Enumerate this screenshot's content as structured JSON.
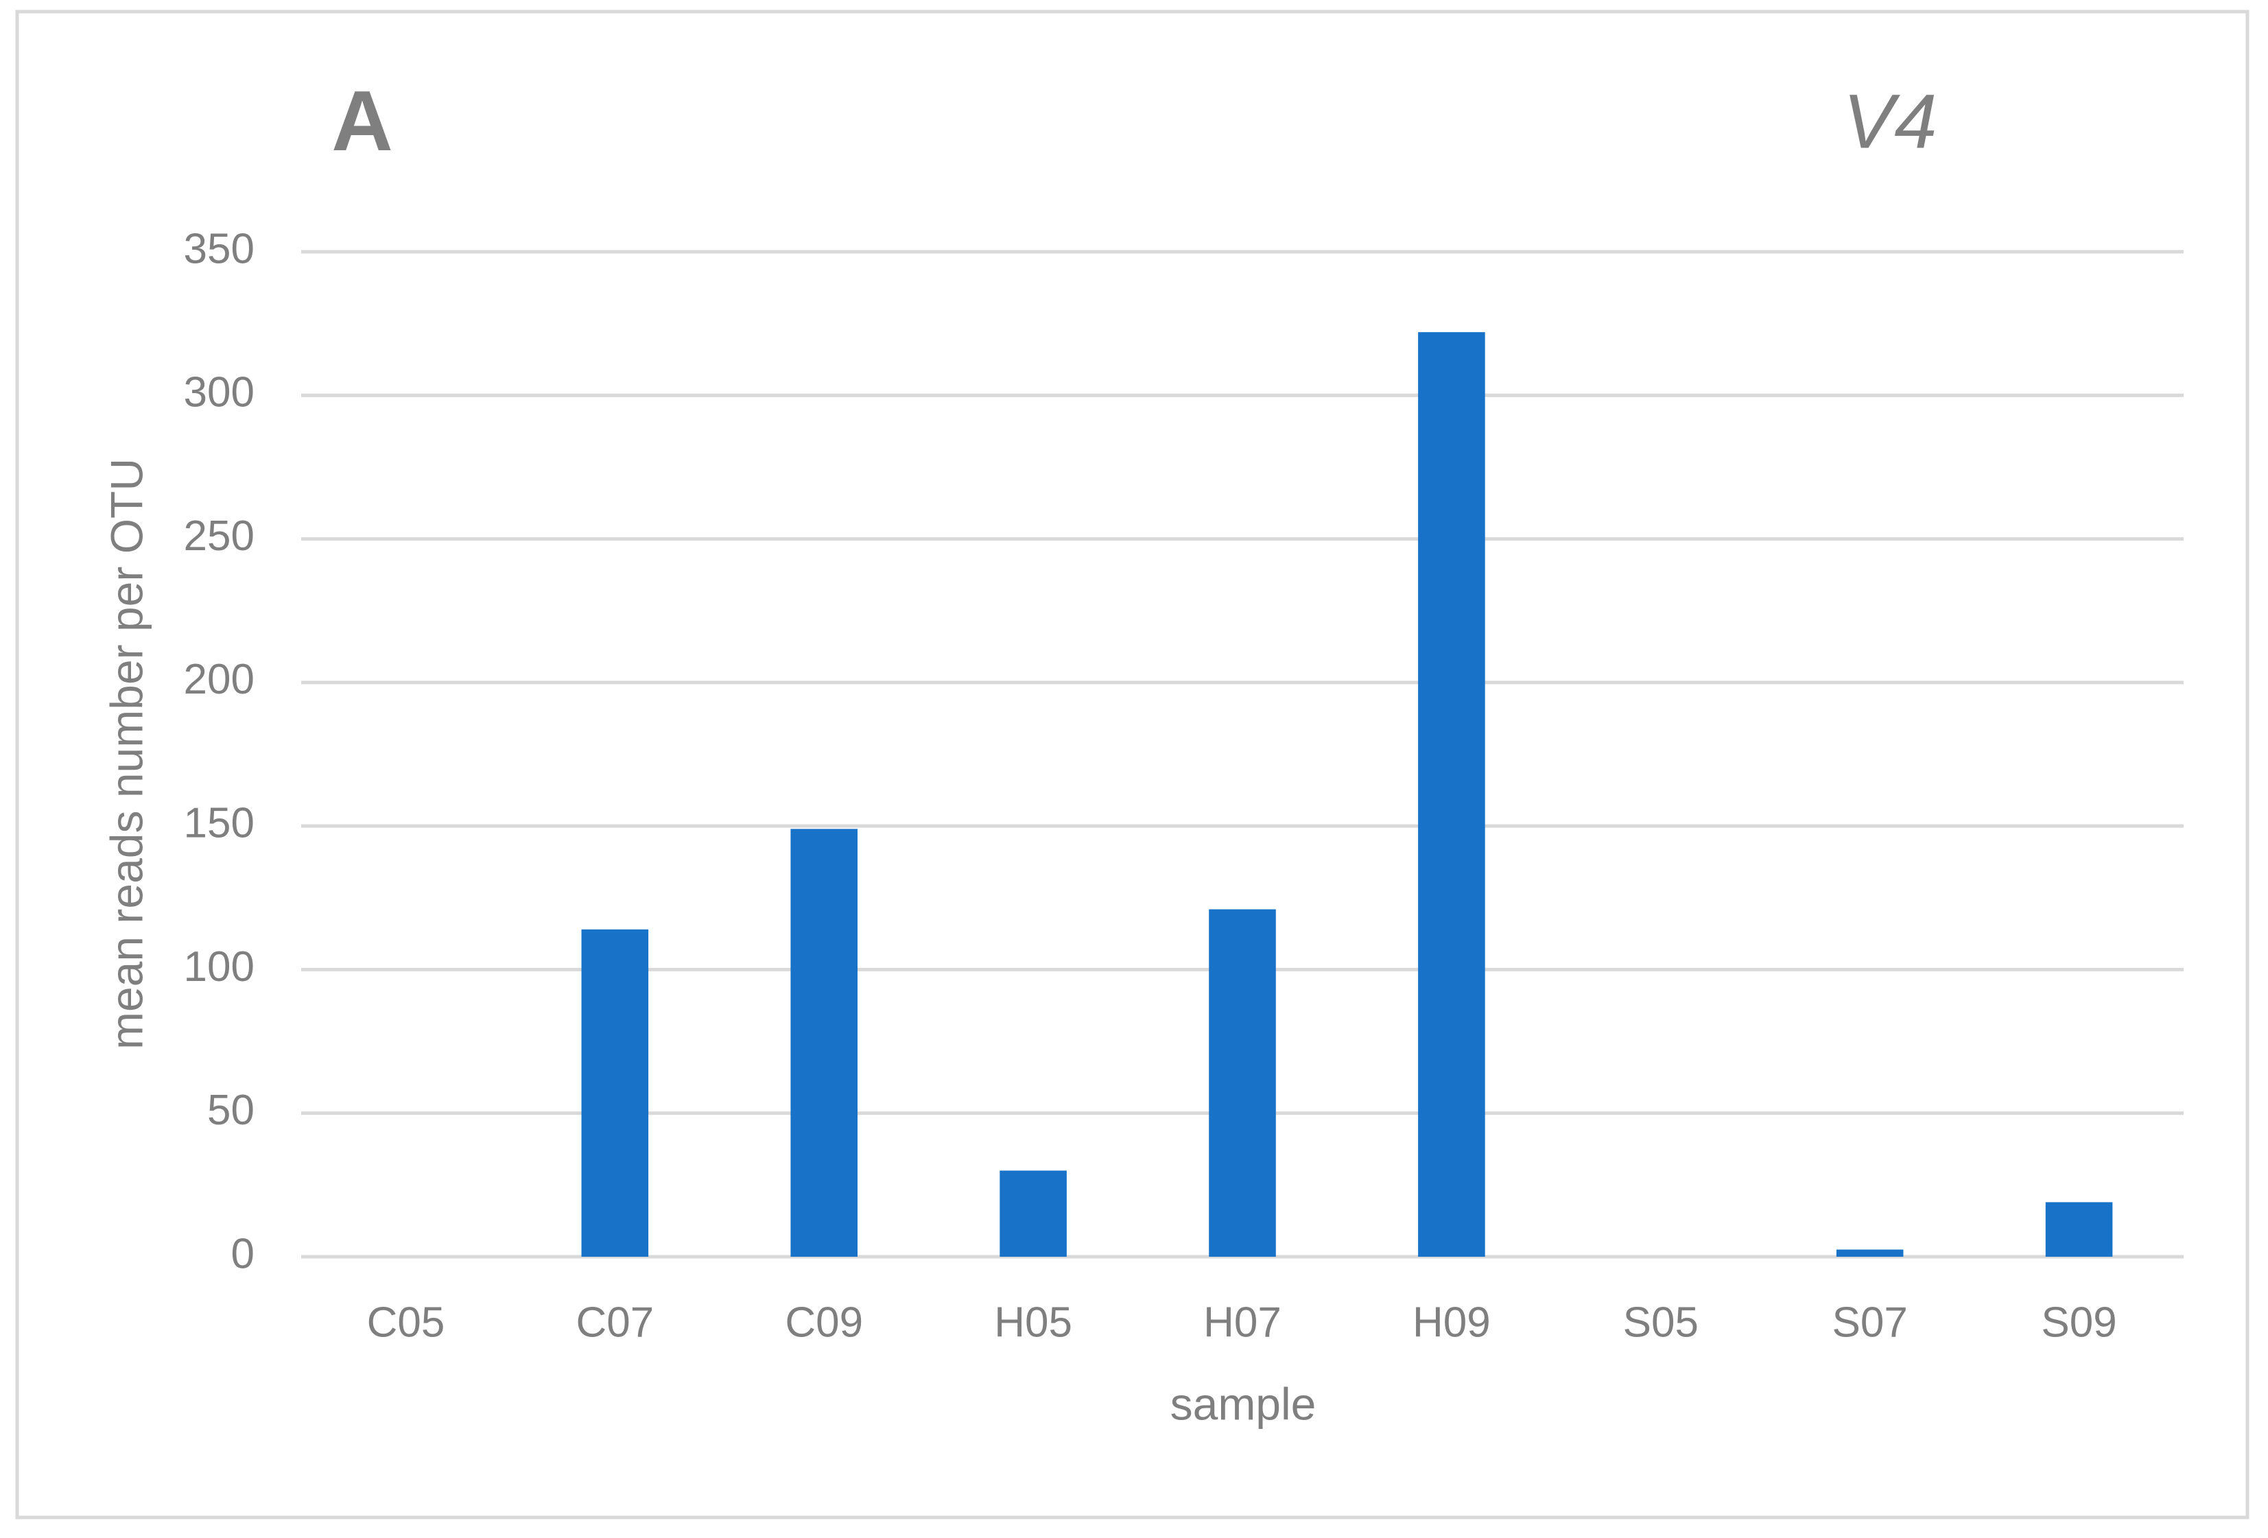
{
  "chart_data": {
    "type": "bar",
    "panel_label": "A",
    "title": "V4",
    "x_label": "sample",
    "y_label": "mean reads number per OTU",
    "categories": [
      "C05",
      "C07",
      "C09",
      "H05",
      "H07",
      "H09",
      "S05",
      "S07",
      "S09"
    ],
    "values": [
      0,
      114,
      149,
      30,
      121,
      322,
      0,
      2.5,
      19
    ],
    "color": "#1872c8",
    "ylim": [
      0,
      350
    ],
    "yticks": [
      0,
      50,
      100,
      150,
      200,
      250,
      300,
      350
    ],
    "grid": true
  }
}
